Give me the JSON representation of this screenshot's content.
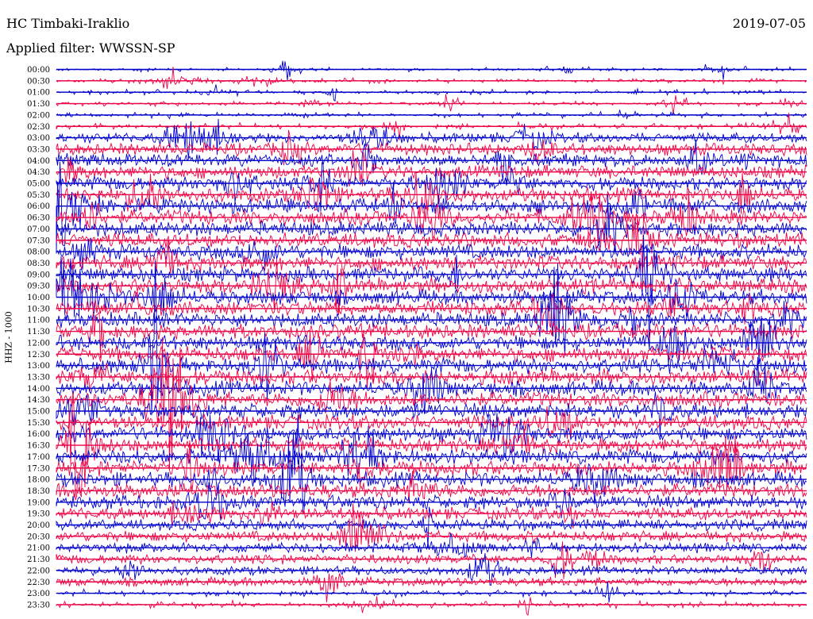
{
  "header": {
    "station": "HC Timbaki-Iraklio",
    "date": "2019-07-05",
    "filter": "Applied filter: WWSSN-SP"
  },
  "chart_data": {
    "type": "line",
    "title": "HC Timbaki-Iraklio",
    "subtitle": "Applied filter: WWSSN-SP",
    "ylabel": "HHZ - 1000",
    "xlabel": "",
    "colors": [
      "#0000cc",
      "#ee0044"
    ],
    "rows": [
      "00:00",
      "00:30",
      "01:00",
      "01:30",
      "02:00",
      "02:30",
      "03:00",
      "03:30",
      "04:00",
      "04:30",
      "05:00",
      "05:30",
      "06:00",
      "06:30",
      "07:00",
      "07:30",
      "08:00",
      "08:30",
      "09:00",
      "09:30",
      "10:00",
      "10:30",
      "11:00",
      "11:30",
      "12:00",
      "12:30",
      "13:00",
      "13:30",
      "14:00",
      "14:30",
      "15:00",
      "15:30",
      "16:00",
      "16:30",
      "17:00",
      "17:30",
      "18:00",
      "18:30",
      "19:00",
      "19:30",
      "20:00",
      "20:30",
      "21:00",
      "21:30",
      "22:00",
      "22:30",
      "23:00",
      "23:30"
    ],
    "row_activity": [
      0.15,
      0.25,
      0.3,
      0.2,
      0.3,
      0.4,
      0.6,
      0.75,
      0.85,
      0.85,
      0.9,
      0.95,
      1.0,
      1.0,
      1.0,
      1.0,
      1.0,
      1.0,
      1.0,
      1.0,
      1.0,
      1.0,
      1.0,
      1.0,
      1.0,
      1.0,
      1.0,
      1.0,
      1.0,
      1.0,
      1.0,
      1.0,
      1.0,
      1.0,
      1.0,
      1.0,
      1.0,
      0.95,
      0.9,
      0.8,
      0.7,
      0.65,
      0.6,
      0.55,
      0.5,
      0.5,
      0.45,
      0.4
    ],
    "legend": "none",
    "grid": false
  }
}
